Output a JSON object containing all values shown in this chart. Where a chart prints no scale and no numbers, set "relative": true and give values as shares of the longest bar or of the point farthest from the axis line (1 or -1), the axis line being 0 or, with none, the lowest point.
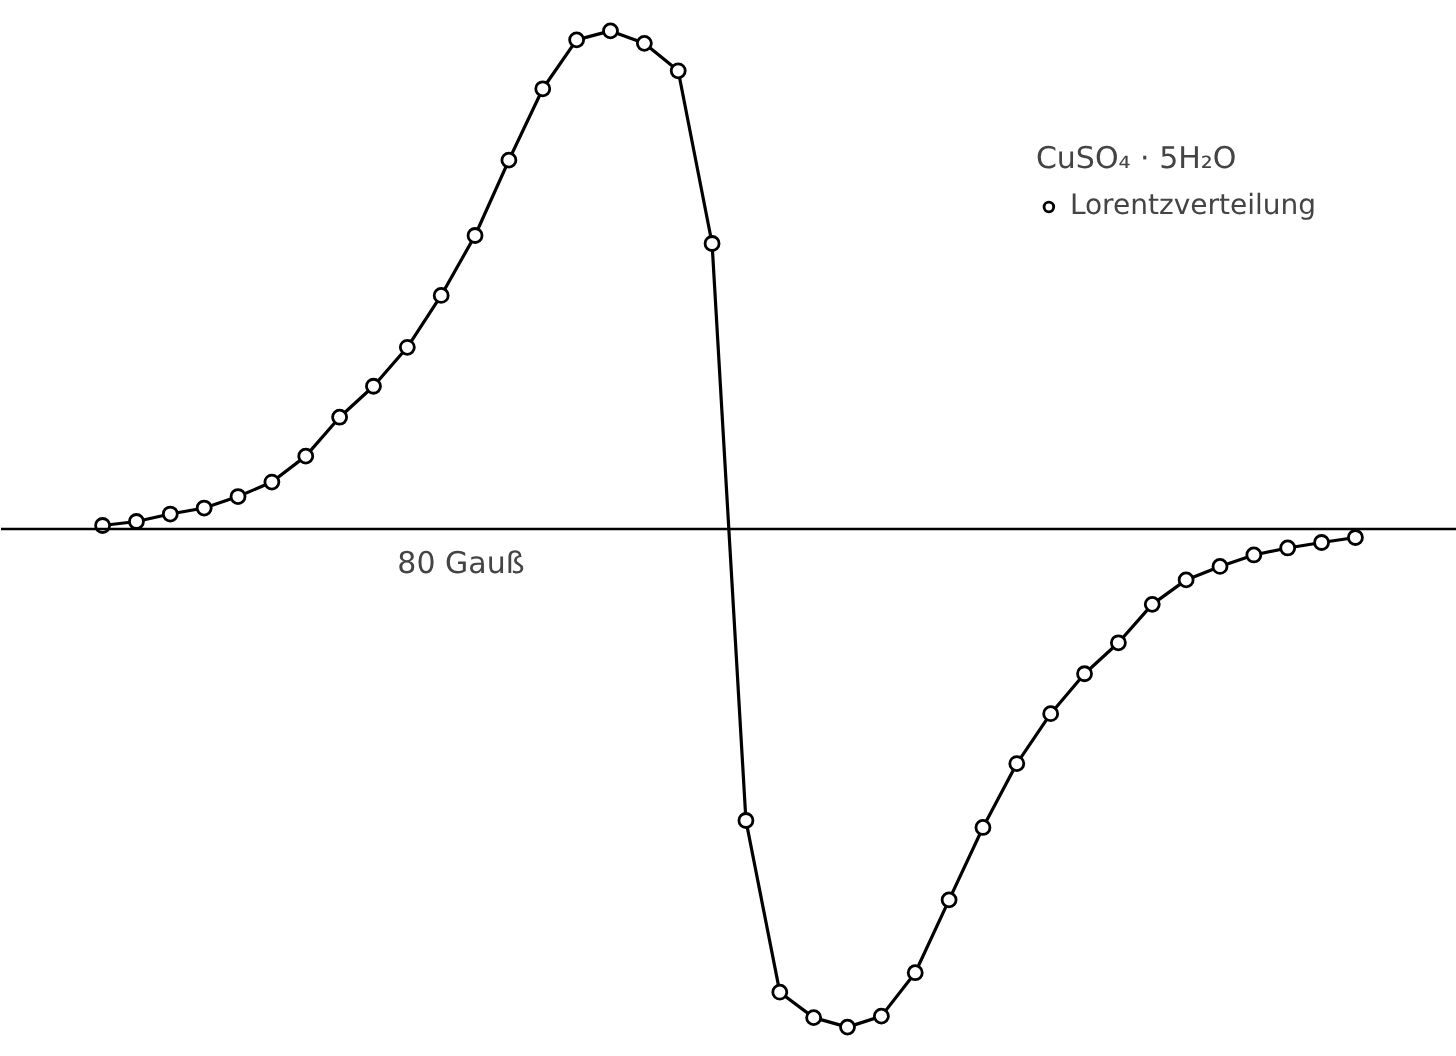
{
  "chart_data": {
    "type": "line",
    "relative": true,
    "marker": "circle",
    "tick_labels": false,
    "grid": false,
    "legend": "top right",
    "legend_title": "CuSO₄ · 5H₂O",
    "categories": [
      null,
      null,
      null,
      null,
      null,
      null,
      null,
      null,
      null,
      null,
      null,
      null,
      null,
      null,
      null,
      null,
      null,
      null,
      null,
      null,
      null,
      null,
      null,
      null,
      null,
      null,
      null,
      null,
      null,
      null,
      null,
      null,
      null,
      null,
      null,
      null,
      null,
      null
    ],
    "series": [
      {
        "name": "Lorentzverteilung",
        "color": "#000000",
        "values": [
          0.009,
          0.017,
          0.032,
          0.044,
          0.067,
          0.096,
          0.148,
          0.226,
          0.288,
          0.366,
          0.47,
          0.59,
          0.741,
          0.884,
          0.982,
          1.0,
          0.975,
          0.92,
          0.574,
          -0.582,
          -0.926,
          -0.977,
          -0.996,
          -0.974,
          -0.887,
          -0.741,
          -0.596,
          -0.468,
          -0.368,
          -0.288,
          -0.226,
          -0.149,
          -0.1,
          -0.073,
          -0.05,
          -0.036,
          -0.025,
          -0.015
        ]
      }
    ],
    "annotations": [
      "80 Gauß"
    ]
  }
}
